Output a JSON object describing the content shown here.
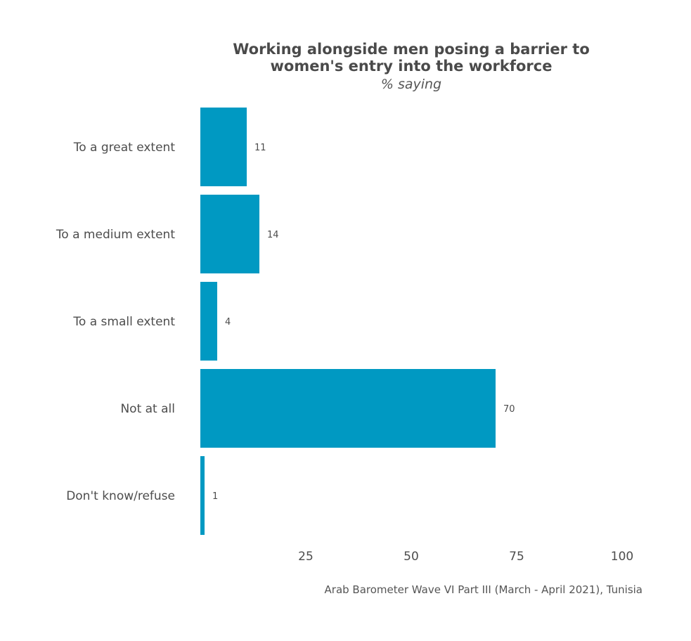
{
  "chart_data": {
    "type": "bar",
    "orientation": "horizontal",
    "title_lines": [
      "Working alongside men posing a barrier to",
      "women's entry into the workforce"
    ],
    "subtitle": "% saying",
    "categories": [
      "To a great extent",
      "To a medium extent",
      "To a small extent",
      "Not at all",
      "Don't know/refuse"
    ],
    "values": [
      11,
      14,
      4,
      70,
      1
    ],
    "value_labels": [
      "11",
      "14",
      "4",
      "70",
      "1"
    ],
    "xlim": [
      0,
      100
    ],
    "x_ticks": [
      25,
      50,
      75,
      100
    ],
    "x_tick_labels": [
      "25",
      "50",
      "75",
      "100"
    ],
    "grid": false,
    "legend": "none",
    "bar_color": "#0099c2",
    "caption": "Arab Barometer Wave VI Part III (March - April 2021), Tunisia"
  }
}
